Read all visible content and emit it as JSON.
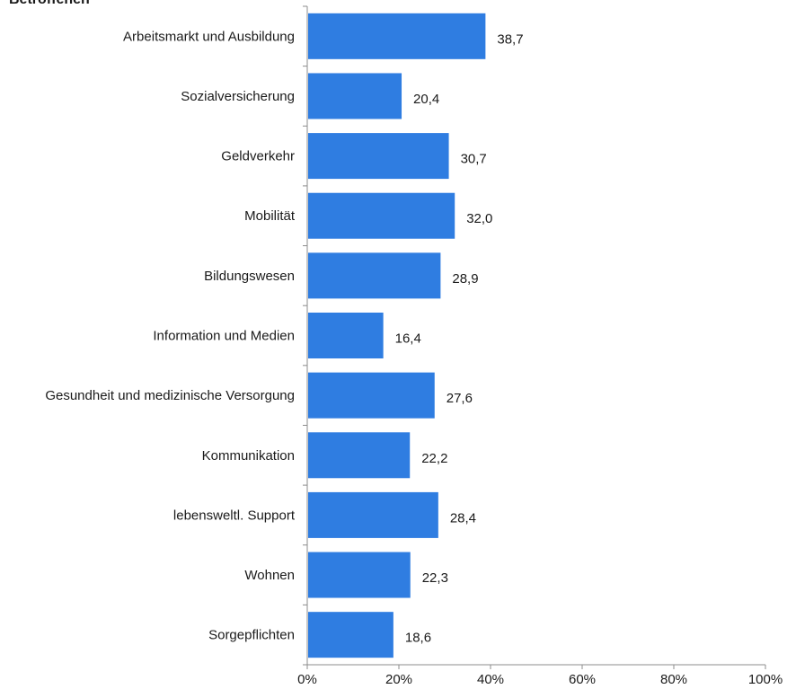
{
  "chart_data": {
    "type": "bar",
    "orientation": "horizontal",
    "title": "Betroffenen",
    "categories": [
      "Arbeitsmarkt und Ausbildung",
      "Sozialversicherung",
      "Geldverkehr",
      "Mobilität",
      "Bildungswesen",
      "Information und Medien",
      "Gesundheit und medizinische Versorgung",
      "Kommunikation",
      "lebensweltl. Support",
      "Wohnen",
      "Sorgepflichten"
    ],
    "values": [
      38.7,
      20.4,
      30.7,
      32.0,
      28.9,
      16.4,
      27.6,
      22.2,
      28.4,
      22.3,
      18.6
    ],
    "value_labels": [
      "38,7",
      "20,4",
      "30,7",
      "32,0",
      "28,9",
      "16,4",
      "27,6",
      "22,2",
      "28,4",
      "22,3",
      "18,6"
    ],
    "xlim": [
      0,
      100
    ],
    "x_ticks": [
      0,
      20,
      40,
      60,
      80,
      100
    ],
    "x_tick_labels": [
      "0%",
      "20%",
      "40%",
      "60%",
      "80%",
      "100%"
    ],
    "xlabel": "",
    "ylabel": "",
    "grid": false,
    "bar_color": "#2f7de1"
  }
}
